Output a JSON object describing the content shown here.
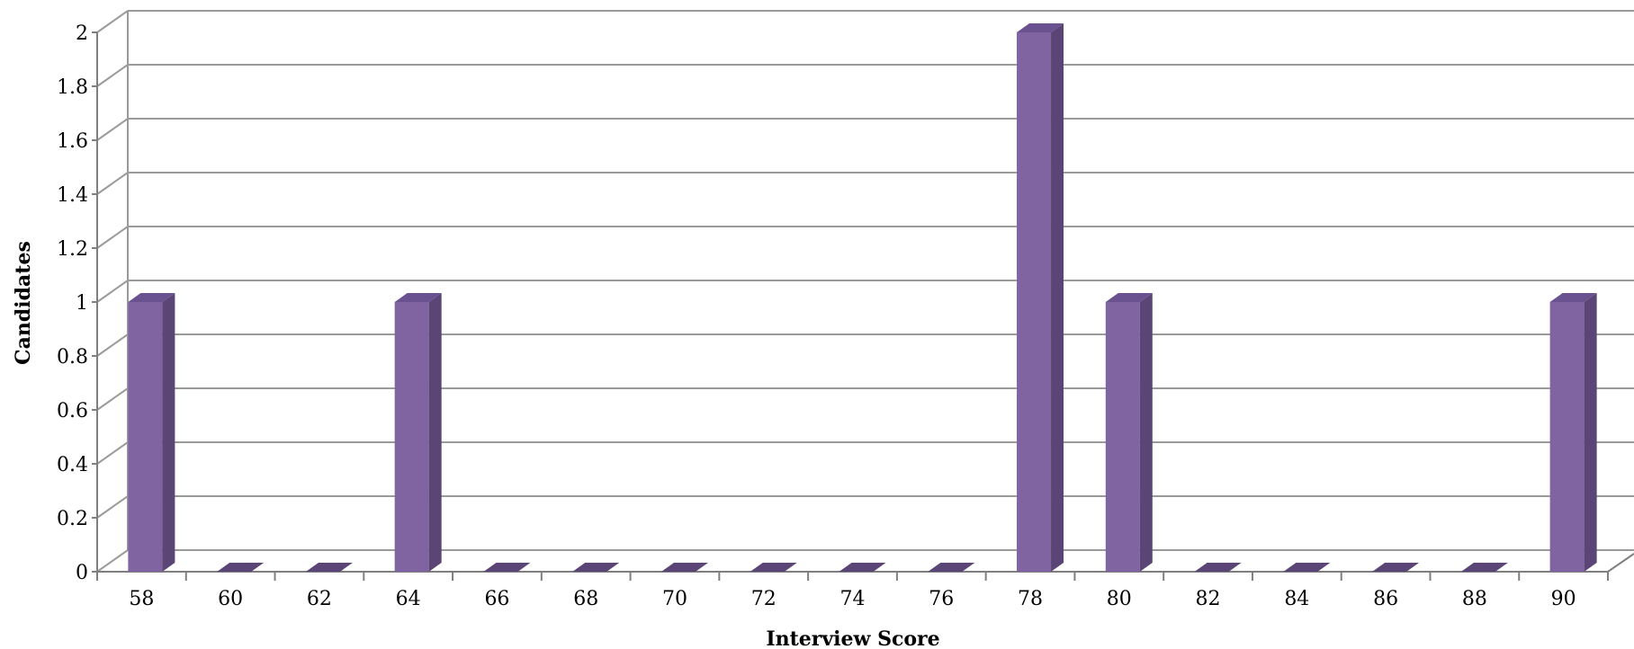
{
  "chart_data": {
    "type": "bar",
    "title": "",
    "xlabel": "Interview Score",
    "ylabel": "Candidates",
    "categories": [
      "58",
      "60",
      "62",
      "64",
      "66",
      "68",
      "70",
      "72",
      "74",
      "76",
      "78",
      "80",
      "82",
      "84",
      "86",
      "88",
      "90"
    ],
    "values": [
      1,
      0,
      0,
      1,
      0,
      0,
      0,
      0,
      0,
      0,
      2,
      1,
      0,
      0,
      0,
      0,
      1
    ],
    "ylim": [
      0,
      2
    ],
    "yticks": [
      "0",
      "0.2",
      "0.4",
      "0.6",
      "0.8",
      "1",
      "1.2",
      "1.4",
      "1.6",
      "1.8",
      "2"
    ],
    "grid": true,
    "style": "3d-column",
    "colors": {
      "front": "#8064a2",
      "side": "#5b4576",
      "top": "#6a5290"
    }
  }
}
